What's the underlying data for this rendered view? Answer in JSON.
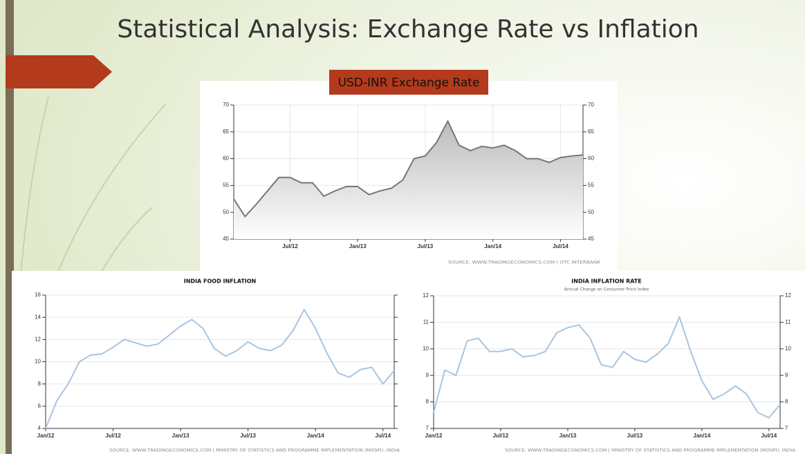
{
  "title": "Statistical Analysis: Exchange Rate vs Inflation",
  "chart_data": [
    {
      "type": "area",
      "title": "USD-INR Exchange Rate",
      "source": "SOURCE: WWW.TRADINGECONOMICS.COM | OTC INTERBANK",
      "categories": [
        null,
        null,
        null,
        null,
        null,
        "Jul/12",
        null,
        null,
        null,
        null,
        null,
        "Jan/13",
        null,
        null,
        null,
        null,
        null,
        "Jul/13",
        null,
        null,
        null,
        null,
        null,
        "Jan/14",
        null,
        null,
        null,
        null,
        null,
        "Jul/14",
        null,
        null
      ],
      "values": [
        52.5,
        49.2,
        51.5,
        54,
        56.5,
        56.5,
        55.5,
        55.5,
        53,
        54,
        54.8,
        54.8,
        53.3,
        54,
        54.5,
        56,
        60,
        60.5,
        63,
        67,
        62.5,
        61.5,
        62.3,
        62,
        62.5,
        61.5,
        60,
        60,
        59.3,
        60.2,
        60.5,
        60.7
      ],
      "color": "#777777",
      "ylim": [
        45,
        70
      ],
      "yticks": [
        45,
        50,
        55,
        60,
        65,
        70
      ],
      "grid": true
    },
    {
      "type": "line",
      "title": "INDIA FOOD INFLATION",
      "source": "SOURCE: WWW.TRADINGECONOMICS.COM | MINISTRY OF STATISTICS AND PROGRAMME IMPLEMENTATION (MOSPI), INDIA",
      "categories": [
        "Jan/12",
        null,
        null,
        null,
        null,
        null,
        "Jul/12",
        null,
        null,
        null,
        null,
        null,
        "Jan/13",
        null,
        null,
        null,
        null,
        null,
        "Jul/13",
        null,
        null,
        null,
        null,
        null,
        "Jan/14",
        null,
        null,
        null,
        null,
        null,
        "Jul/14",
        null
      ],
      "values": [
        4,
        6.5,
        8,
        10,
        10.6,
        10.7,
        11.3,
        12,
        11.7,
        11.4,
        11.6,
        12.4,
        13.2,
        13.8,
        13,
        11.2,
        10.5,
        11,
        11.8,
        11.2,
        11,
        11.5,
        12.8,
        14.7,
        13,
        10.8,
        9,
        8.6,
        9.3,
        9.5,
        8,
        9.2
      ],
      "color": "#a9c4e0",
      "ylim": [
        4,
        16
      ],
      "yticks": [
        4,
        6,
        8,
        10,
        12,
        14,
        16
      ],
      "grid": true
    },
    {
      "type": "line",
      "title": "INDIA INFLATION RATE",
      "subtitle": "Annual Change on Consumer Price Index",
      "source": "SOURCE: WWW.TRADINGECONOMICS.COM | MINISTRY OF STATISTICS AND PROGRAMME IMPLEMENTATION (MOSPI), INDIA",
      "categories": [
        "Jan/12",
        null,
        null,
        null,
        null,
        null,
        "Jul/12",
        null,
        null,
        null,
        null,
        null,
        "Jan/13",
        null,
        null,
        null,
        null,
        null,
        "Jul/13",
        null,
        null,
        null,
        null,
        null,
        "Jan/14",
        null,
        null,
        null,
        null,
        null,
        "Jul/14",
        null
      ],
      "values": [
        7.6,
        9.2,
        9,
        10.3,
        10.4,
        9.9,
        9.9,
        10,
        9.7,
        9.75,
        9.9,
        10.6,
        10.8,
        10.9,
        10.4,
        9.4,
        9.3,
        9.9,
        9.6,
        9.5,
        9.8,
        10.2,
        11.2,
        9.9,
        8.8,
        8.1,
        8.3,
        8.6,
        8.3,
        7.6,
        7.4,
        7.9
      ],
      "color": "#a9c4e0",
      "ylim": [
        7,
        12
      ],
      "yticks": [
        7,
        8,
        9,
        10,
        11,
        12
      ],
      "grid": true
    }
  ]
}
